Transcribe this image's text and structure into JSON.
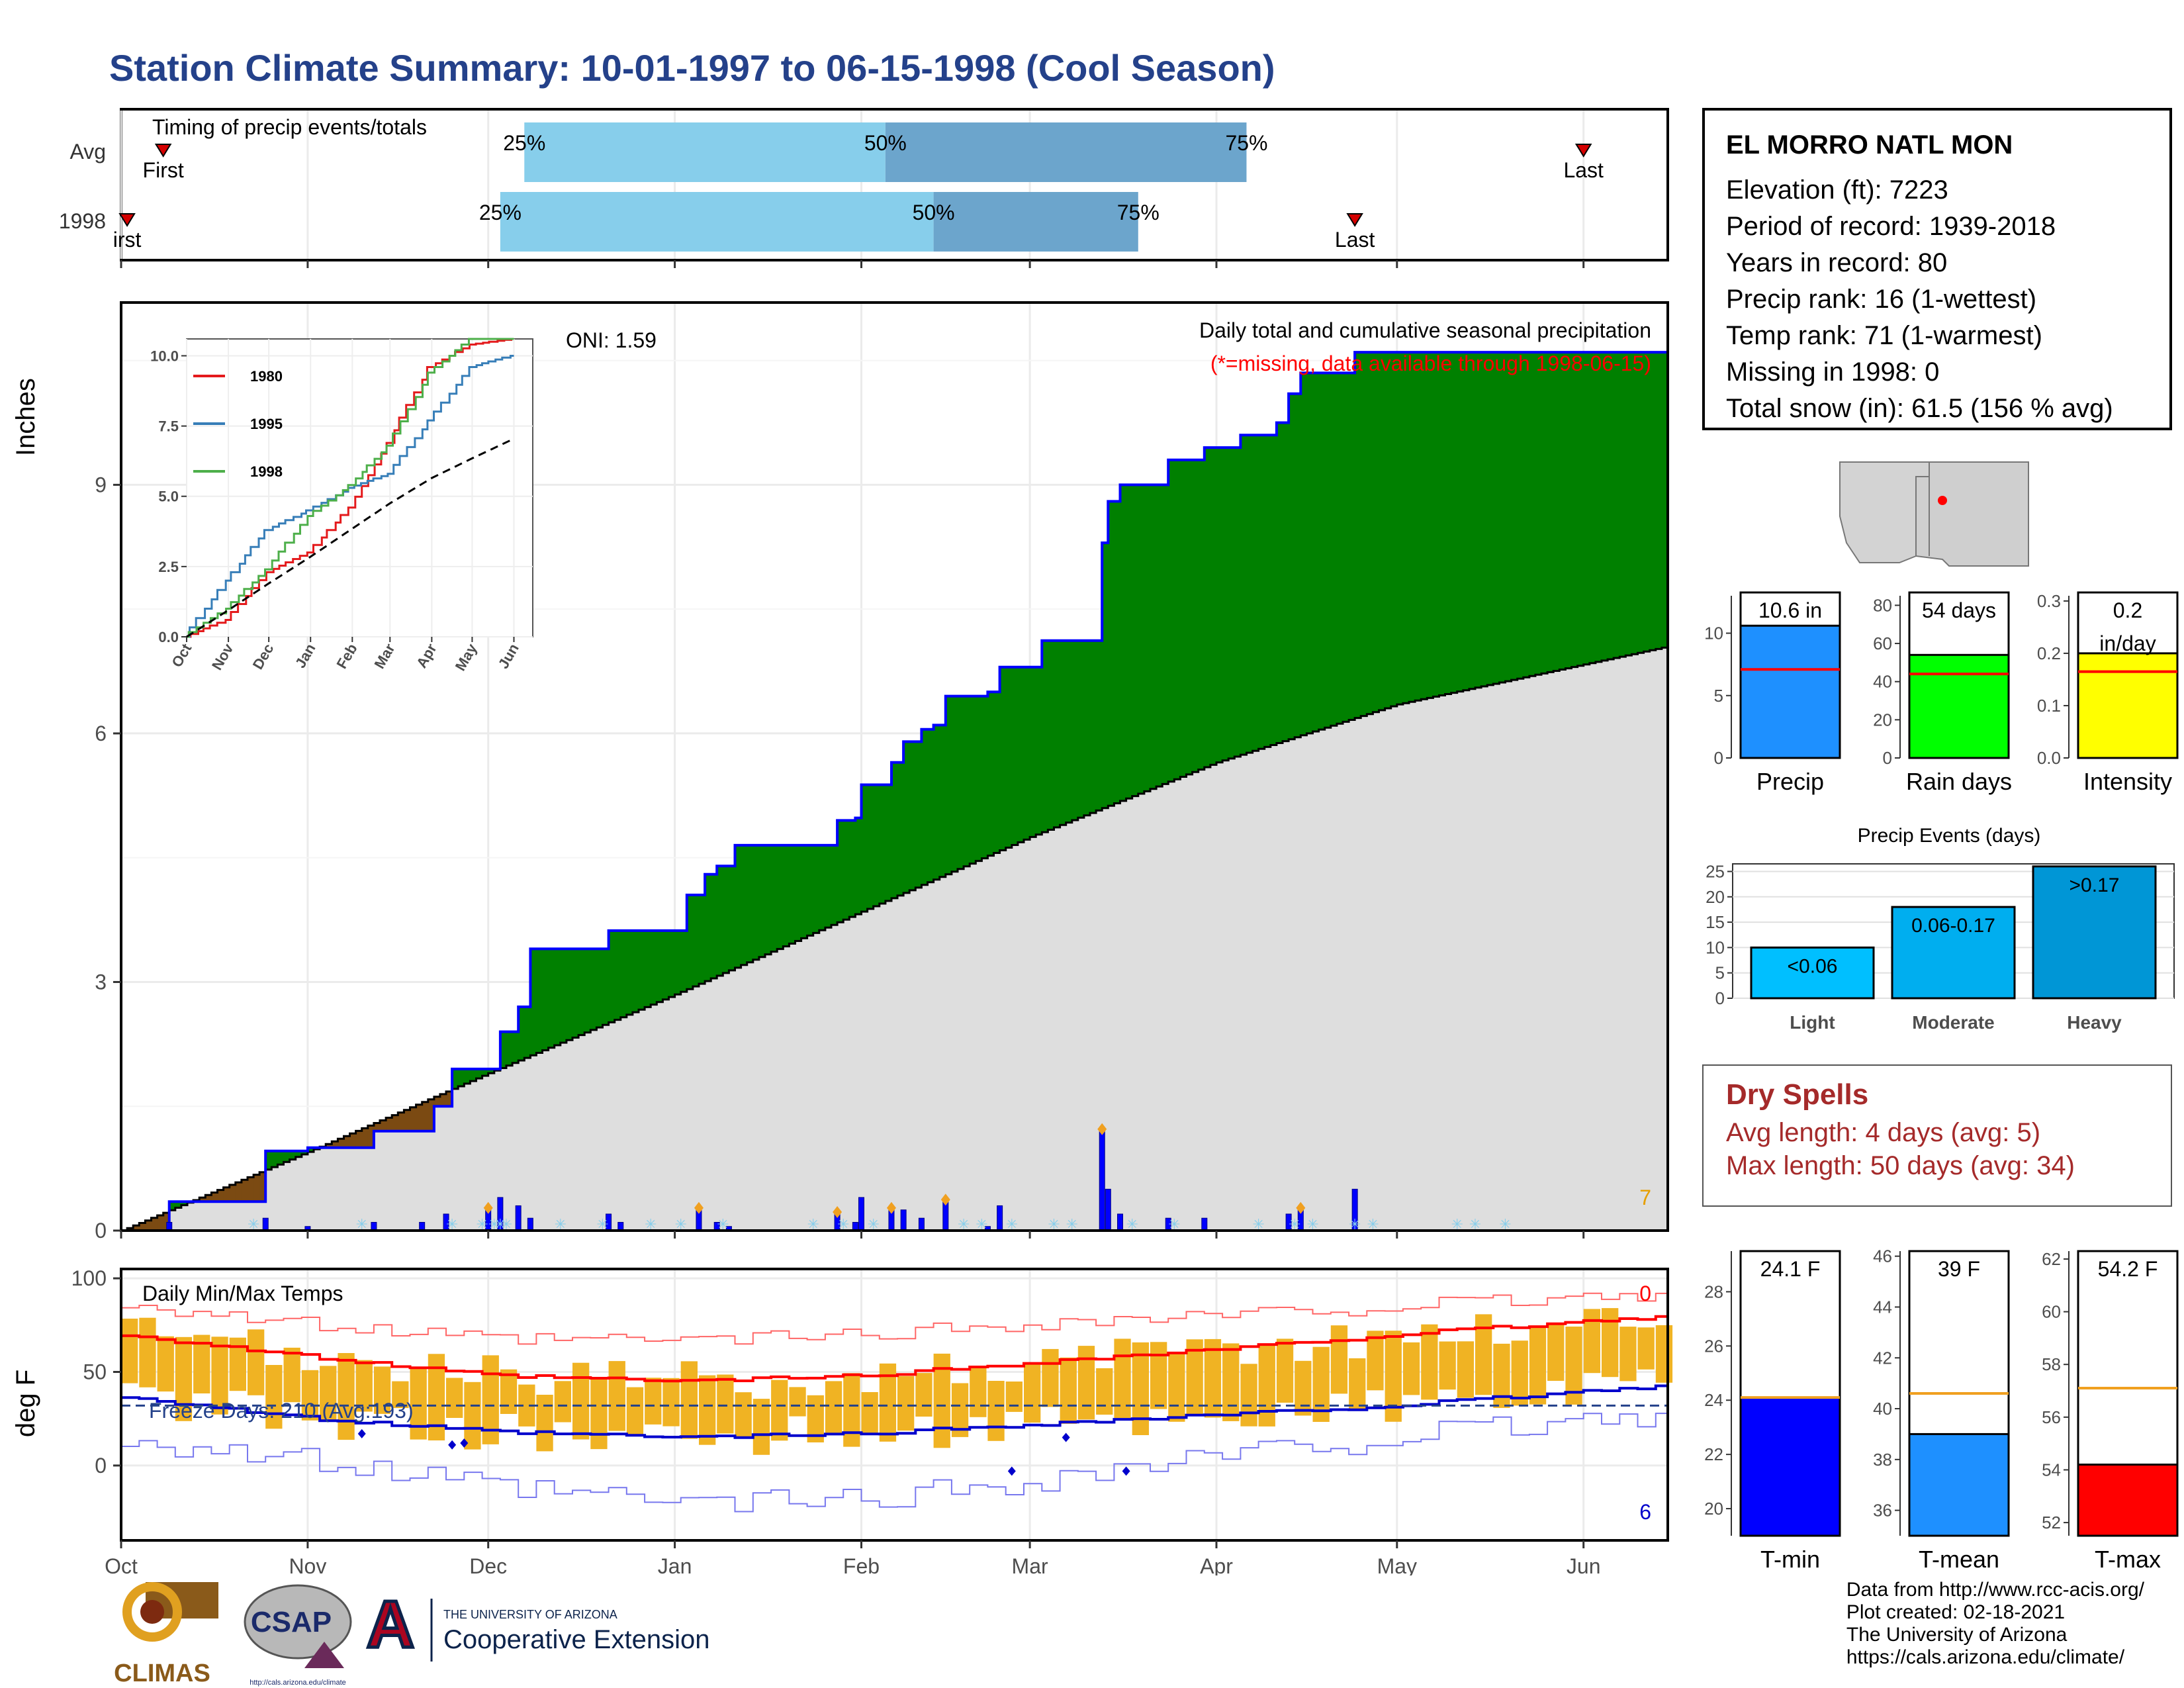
{
  "title": "Station Climate Summary: 10-01-1997 to 06-15-1998 (Cool Season)",
  "timing_panel": {
    "label": "Timing of precip events/totals",
    "rows": [
      {
        "name": "Avg",
        "first_label": "First",
        "last_label": "Last",
        "first_date": "1997-10-08",
        "last_date": "1998-06-01",
        "q25_date": "1997-12-07",
        "q50_date": "1998-02-05",
        "q75_date": "1998-04-06"
      },
      {
        "name": "1998",
        "first_label": "irst",
        "last_label": "Last",
        "first_date": "1997-10-02",
        "last_date": "1998-04-24",
        "q25_date": "1997-12-03",
        "q50_date": "1998-02-13",
        "q75_date": "1998-03-19"
      }
    ],
    "pct_labels": [
      "25%",
      "50%",
      "75%"
    ]
  },
  "station": {
    "name": "EL MORRO NATL MON",
    "lines": [
      "Elevation (ft): 7223",
      "Period of record: 1939-2018",
      "Years in record: 80",
      "Precip rank: 16 (1-wettest)",
      "Temp rank: 71 (1-warmest)",
      "Missing in 1998: 0",
      "Total snow (in): 61.5 (156 % avg)"
    ]
  },
  "precip_panel": {
    "ylabel": "Inches",
    "title": "Daily total and cumulative seasonal precipitation",
    "subtitle": "(*=missing, data available through 1998-06-15)",
    "oni": "ONI: 1.59",
    "corner_count": "7",
    "x_ticks": [
      "Oct",
      "Nov",
      "Dec",
      "Jan",
      "Feb",
      "Mar",
      "Apr",
      "May",
      "Jun"
    ],
    "y_ticks": [
      "0",
      "3",
      "6",
      "9"
    ]
  },
  "inset": {
    "legend": [
      "1980",
      "1995",
      "1998"
    ],
    "y_ticks": [
      "0.0",
      "2.5",
      "5.0",
      "7.5",
      "10.0"
    ],
    "x_ticks": [
      "Oct",
      "Nov",
      "Dec",
      "Jan",
      "Feb",
      "Mar",
      "Apr",
      "May",
      "Jun"
    ]
  },
  "summary_bars": [
    {
      "label": "Precip",
      "value_label": "10.6 in",
      "y_ticks": [
        "0",
        "5",
        "10"
      ]
    },
    {
      "label": "Rain days",
      "value_label": "54 days",
      "y_ticks": [
        "0",
        "20",
        "40",
        "60",
        "80"
      ]
    },
    {
      "label": "Intensity",
      "value_label": "0.2\nin/day",
      "y_ticks": [
        "0.0",
        "0.1",
        "0.2",
        "0.3"
      ]
    }
  ],
  "events_panel": {
    "title": "Precip Events (days)",
    "y_ticks": [
      "0",
      "5",
      "10",
      "15",
      "20",
      "25"
    ]
  },
  "dry_spells": {
    "title": "Dry Spells",
    "lines": [
      "Avg length: 4 days (avg: 5)",
      "Max length: 50 days (avg: 34)"
    ]
  },
  "temp_panel": {
    "ylabel": "deg F",
    "title": "Daily Min/Max Temps",
    "freeze_label": "Freeze Days: 210 (Avg:193)",
    "top_count": "0",
    "bottom_count": "6",
    "y_ticks": [
      "0",
      "50",
      "100"
    ],
    "x_ticks": [
      "Oct",
      "Nov",
      "Dec",
      "Jan",
      "Feb",
      "Mar",
      "Apr",
      "May",
      "Jun"
    ]
  },
  "temp_bars": [
    {
      "label": "T-min",
      "value_label": "24.1 F",
      "y_ticks": [
        "20",
        "22",
        "24",
        "26",
        "28"
      ]
    },
    {
      "label": "T-mean",
      "value_label": "39 F",
      "y_ticks": [
        "36",
        "38",
        "40",
        "42",
        "44",
        "46"
      ]
    },
    {
      "label": "T-max",
      "value_label": "54.2 F",
      "y_ticks": [
        "52",
        "54",
        "56",
        "58",
        "60",
        "62"
      ]
    }
  ],
  "credits": [
    "Data from http://www.rcc-acis.org/",
    "Plot created: 02-18-2021",
    "The University of Arizona",
    "https://cals.arizona.edu/climate/"
  ],
  "logos": {
    "climas": "CLIMAS",
    "csap": "CSAP",
    "csap_url": "http://cals.arizona.edu/climate",
    "ua_small": "THE UNIVERSITY OF ARIZONA",
    "ua_big": "Cooperative Extension"
  },
  "colors": {
    "title": "#24418a",
    "wet": "#008000",
    "dry": "#7b4a12",
    "normal": "#dedede",
    "daily": "#0000ff",
    "q_light": "#87ceeb",
    "q_dark": "#6ca5cc",
    "tmax": "#ff0000",
    "tmin": "#0000cc",
    "range": "#f0b323",
    "drytext": "#a52a2a"
  },
  "chart_data": [
    {
      "type": "area",
      "title": "Daily total and cumulative seasonal precipitation",
      "ylabel": "Inches",
      "ylim": [
        0,
        11
      ],
      "x_range": [
        "1997-10-01",
        "1998-06-15"
      ],
      "series": [
        {
          "name": "1998",
          "x": [
            "1997-10-01",
            "1997-10-09",
            "1997-10-25",
            "1997-11-01",
            "1997-11-12",
            "1997-11-22",
            "1997-11-25",
            "1997-11-27",
            "1997-12-03",
            "1997-12-06",
            "1997-12-08",
            "1997-12-21",
            "1997-12-23",
            "1998-01-03",
            "1998-01-06",
            "1998-01-08",
            "1998-01-11",
            "1998-01-28",
            "1998-01-31",
            "1998-02-01",
            "1998-02-06",
            "1998-02-08",
            "1998-02-11",
            "1998-02-13",
            "1998-02-15",
            "1998-02-22",
            "1998-02-24",
            "1998-03-03",
            "1998-03-13",
            "1998-03-14",
            "1998-03-16",
            "1998-03-24",
            "1998-03-30",
            "1998-04-05",
            "1998-04-11",
            "1998-04-13",
            "1998-04-15",
            "1998-04-24",
            "1998-06-15"
          ],
          "y": [
            0,
            0.35,
            0.96,
            1.0,
            1.2,
            1.5,
            1.95,
            1.95,
            2.4,
            2.7,
            3.4,
            3.62,
            3.62,
            4.05,
            4.3,
            4.4,
            4.65,
            4.95,
            4.98,
            5.38,
            5.65,
            5.9,
            6.05,
            6.1,
            6.45,
            6.5,
            6.8,
            7.12,
            8.3,
            8.8,
            9.0,
            9.3,
            9.45,
            9.6,
            9.75,
            10.1,
            10.35,
            10.6,
            10.6
          ]
        },
        {
          "name": "Average cumulative",
          "x": [
            "1997-10-01",
            "1997-11-01",
            "1997-12-01",
            "1998-01-01",
            "1998-02-01",
            "1998-03-01",
            "1998-04-01",
            "1998-05-01",
            "1998-06-15"
          ],
          "y": [
            0,
            0.95,
            1.9,
            2.85,
            3.85,
            4.75,
            5.65,
            6.35,
            7.05
          ]
        }
      ]
    },
    {
      "type": "bar",
      "title": "Daily precipitation",
      "x": [
        "1997-10-09",
        "1997-10-25",
        "1997-11-01",
        "1997-11-12",
        "1997-11-20",
        "1997-11-24",
        "1997-12-01",
        "1997-12-03",
        "1997-12-06",
        "1997-12-08",
        "1997-12-21",
        "1997-12-23",
        "1998-01-05",
        "1998-01-08",
        "1998-01-10",
        "1998-01-28",
        "1998-01-31",
        "1998-02-01",
        "1998-02-06",
        "1998-02-08",
        "1998-02-11",
        "1998-02-15",
        "1998-02-22",
        "1998-02-24",
        "1998-03-13",
        "1998-03-14",
        "1998-03-16",
        "1998-03-24",
        "1998-03-30",
        "1998-04-13",
        "1998-04-15",
        "1998-04-24"
      ],
      "y": [
        0.1,
        0.15,
        0.05,
        0.1,
        0.1,
        0.2,
        0.25,
        0.4,
        0.3,
        0.15,
        0.2,
        0.1,
        0.25,
        0.1,
        0.05,
        0.2,
        0.1,
        0.4,
        0.25,
        0.25,
        0.15,
        0.35,
        0.05,
        0.3,
        1.2,
        0.5,
        0.2,
        0.15,
        0.15,
        0.2,
        0.25,
        0.5
      ]
    },
    {
      "type": "line",
      "title": "Cumulative precipitation inset",
      "ylim": [
        0,
        10.5
      ],
      "categories": [
        "Oct",
        "Nov",
        "Dec",
        "Jan",
        "Feb",
        "Mar",
        "Apr",
        "May",
        "Jun"
      ],
      "series": [
        {
          "name": "1980",
          "values": [
            0,
            0.6,
            2.3,
            3.0,
            4.6,
            6.9,
            9.6,
            10.4,
            10.6
          ]
        },
        {
          "name": "1995",
          "values": [
            0,
            2.0,
            3.8,
            4.5,
            5.3,
            5.8,
            7.7,
            9.6,
            10.0
          ]
        },
        {
          "name": "1998",
          "values": [
            0,
            1.0,
            2.4,
            4.3,
            5.4,
            6.8,
            9.4,
            10.6,
            10.6
          ]
        },
        {
          "name": "Average",
          "values": [
            0,
            0.95,
            1.9,
            2.85,
            3.85,
            4.75,
            5.65,
            6.35,
            7.05
          ]
        }
      ]
    },
    {
      "type": "bar",
      "title": "Precip",
      "categories": [
        "Precip"
      ],
      "values": [
        10.6
      ],
      "average": 7.1,
      "ylim": [
        0,
        13
      ]
    },
    {
      "type": "bar",
      "title": "Rain days",
      "categories": [
        "Rain days"
      ],
      "values": [
        54
      ],
      "average": 44,
      "ylim": [
        0,
        85
      ]
    },
    {
      "type": "bar",
      "title": "Intensity",
      "categories": [
        "Intensity"
      ],
      "values": [
        0.2
      ],
      "average": 0.165,
      "ylim": [
        0,
        0.31
      ]
    },
    {
      "type": "bar",
      "title": "Precip Events (days)",
      "categories": [
        "Light",
        "Moderate",
        "Heavy"
      ],
      "bar_labels": [
        "<0.06",
        "0.06-0.17",
        ">0.17"
      ],
      "values": [
        10,
        18,
        26
      ],
      "ylim": [
        0,
        26
      ]
    },
    {
      "type": "area",
      "title": "Daily Min/Max Temps",
      "ylabel": "deg F",
      "ylim": [
        -40,
        100
      ],
      "categories": [
        "1997-10-01",
        "1997-11-01",
        "1997-12-01",
        "1998-01-01",
        "1998-02-01",
        "1998-03-01",
        "1998-04-01",
        "1998-05-01",
        "1998-06-15"
      ],
      "series": [
        {
          "name": "Avg max",
          "values": [
            70,
            58,
            48,
            45,
            48,
            55,
            62,
            70,
            80
          ]
        },
        {
          "name": "Avg min",
          "values": [
            37,
            25,
            18,
            15,
            17,
            22,
            27,
            32,
            43
          ]
        },
        {
          "name": "Record max",
          "values": [
            87,
            75,
            67,
            67,
            70,
            76,
            80,
            85,
            92
          ]
        },
        {
          "name": "Record min",
          "values": [
            15,
            2,
            -12,
            -20,
            -18,
            -8,
            5,
            15,
            28
          ]
        },
        {
          "name": "Freeze threshold",
          "values": [
            32,
            32,
            32,
            32,
            32,
            32,
            32,
            32,
            32
          ]
        }
      ]
    },
    {
      "type": "bar",
      "title": "T-min",
      "categories": [
        "T-min"
      ],
      "values": [
        24.1
      ],
      "average": 24.1,
      "ylim": [
        19,
        29.5
      ]
    },
    {
      "type": "bar",
      "title": "T-mean",
      "categories": [
        "T-mean"
      ],
      "values": [
        39
      ],
      "average": 40.6,
      "ylim": [
        35,
        46.2
      ]
    },
    {
      "type": "bar",
      "title": "T-max",
      "categories": [
        "T-max"
      ],
      "values": [
        54.2
      ],
      "average": 57.1,
      "ylim": [
        51.5,
        62.3
      ]
    }
  ]
}
